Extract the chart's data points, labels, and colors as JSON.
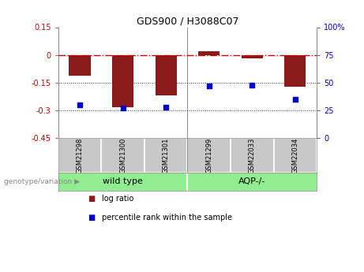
{
  "title": "GDS900 / H3088C07",
  "samples": [
    "GSM21298",
    "GSM21300",
    "GSM21301",
    "GSM21299",
    "GSM22033",
    "GSM22034"
  ],
  "log_ratio": [
    -0.11,
    -0.28,
    -0.22,
    0.02,
    -0.02,
    -0.17
  ],
  "percentile": [
    30,
    27,
    28,
    47,
    48,
    35
  ],
  "ylim_left": [
    -0.45,
    0.15
  ],
  "ylim_right": [
    0,
    100
  ],
  "yticks_left": [
    0.15,
    0,
    -0.15,
    -0.3,
    -0.45
  ],
  "yticks_right": [
    100,
    75,
    50,
    25,
    0
  ],
  "bar_color": "#8B1A1A",
  "dot_color": "#0000CD",
  "hline_color": "#CC0000",
  "dotted_line_color": "#333333",
  "bg_color": "#FFFFFF",
  "label_log_ratio": "log ratio",
  "label_percentile": "percentile rank within the sample",
  "genotype_label": "genotype/variation",
  "group1_label": "wild type",
  "group2_label": "AQP-/-",
  "group_color": "#90EE90",
  "label_bg": "#C8C8C8"
}
